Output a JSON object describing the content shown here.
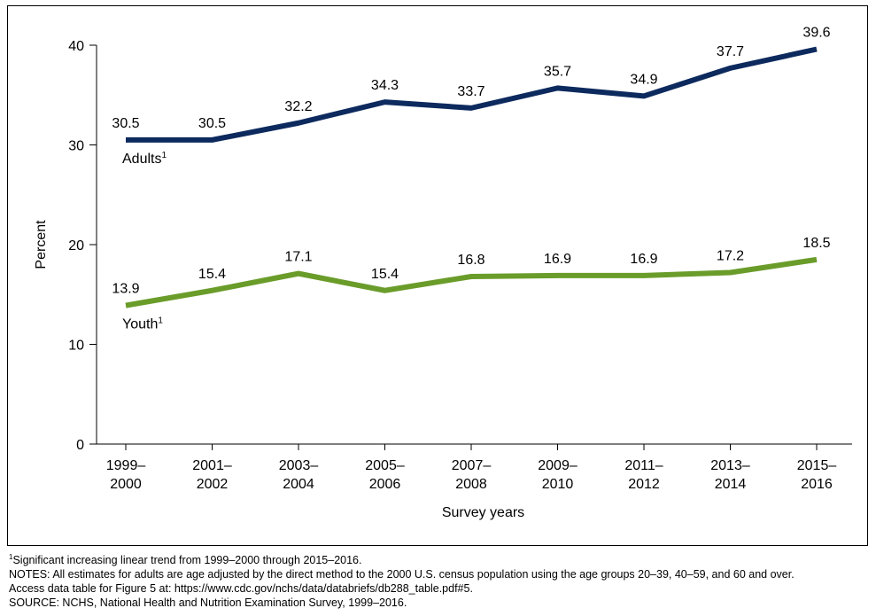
{
  "chart_data": {
    "type": "line",
    "categories": [
      [
        "1999–",
        "2000"
      ],
      [
        "2001–",
        "2002"
      ],
      [
        "2003–",
        "2004"
      ],
      [
        "2005–",
        "2006"
      ],
      [
        "2007–",
        "2008"
      ],
      [
        "2009–",
        "2010"
      ],
      [
        "2011–",
        "2012"
      ],
      [
        "2013–",
        "2014"
      ],
      [
        "2015–",
        "2016"
      ]
    ],
    "series": [
      {
        "name": "Adults",
        "footnote_marker": "1",
        "color": "#0d2a5e",
        "values": [
          30.5,
          30.5,
          32.2,
          34.3,
          33.7,
          35.7,
          34.9,
          37.7,
          39.6
        ],
        "labels": [
          "30.5",
          "30.5",
          "32.2",
          "34.3",
          "33.7",
          "35.7",
          "34.9",
          "37.7",
          "39.6"
        ]
      },
      {
        "name": "Youth",
        "footnote_marker": "1",
        "color": "#6a9c2a",
        "values": [
          13.9,
          15.4,
          17.1,
          15.4,
          16.8,
          16.9,
          16.9,
          17.2,
          18.5
        ],
        "labels": [
          "13.9",
          "15.4",
          "17.1",
          "15.4",
          "16.8",
          "16.9",
          "16.9",
          "17.2",
          "18.5"
        ]
      }
    ],
    "xlabel": "Survey years",
    "ylabel": "Percent",
    "ylim": [
      0,
      40
    ],
    "yticks": [
      "0",
      "10",
      "20",
      "30",
      "40"
    ],
    "grid": false
  },
  "notes": {
    "footnote_marker": "1",
    "footnote": "Significant increasing linear trend from 1999–2000 through 2015–2016.",
    "notes_line": "NOTES: All estimates for adults are age adjusted by the direct method to the 2000 U.S. census population using the age groups 20–39, 40–59, and 60 and over.",
    "access_line": "Access data table for Figure 5 at: https://www.cdc.gov/nchs/data/databriefs/db288_table.pdf#5.",
    "source_line": "SOURCE: NCHS, National Health and Nutrition Examination Survey, 1999–2016."
  }
}
